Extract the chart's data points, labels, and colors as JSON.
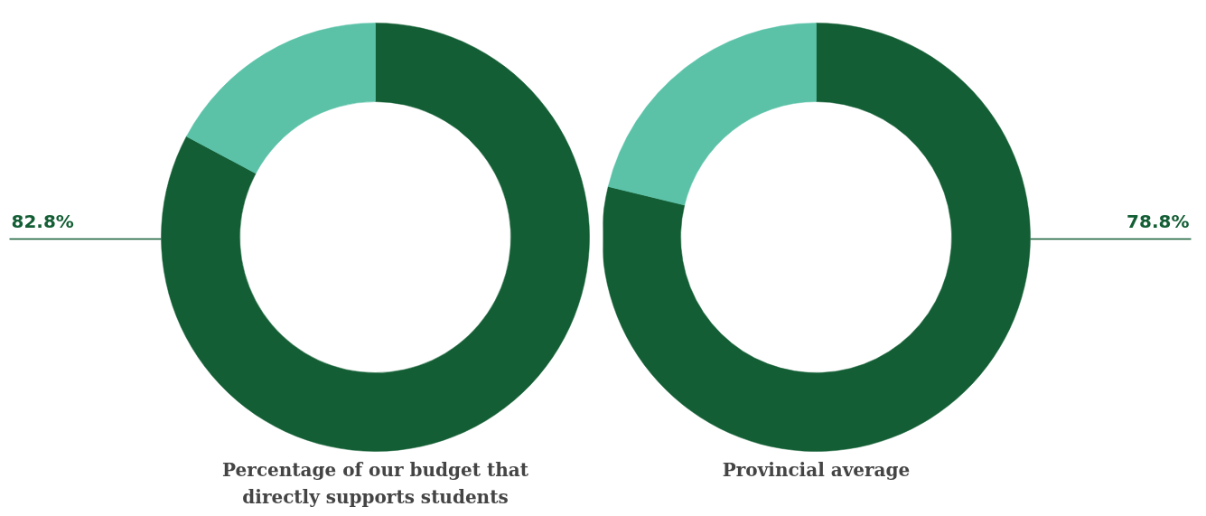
{
  "chart_data": [
    {
      "type": "donut",
      "title": "Percentage of our budget that directly supports students",
      "categories": [
        null,
        null
      ],
      "values": [
        82.8,
        17.2
      ],
      "colors": [
        "#135e34",
        "#5bc2a8"
      ],
      "value_labels": [
        "82.8%",
        null
      ]
    },
    {
      "type": "donut",
      "title": "Provincial average",
      "categories": [
        null,
        null
      ],
      "values": [
        78.8,
        21.2
      ],
      "colors": [
        "#135e34",
        "#5bc2a8"
      ],
      "value_labels": [
        "78.8%",
        null
      ]
    }
  ]
}
